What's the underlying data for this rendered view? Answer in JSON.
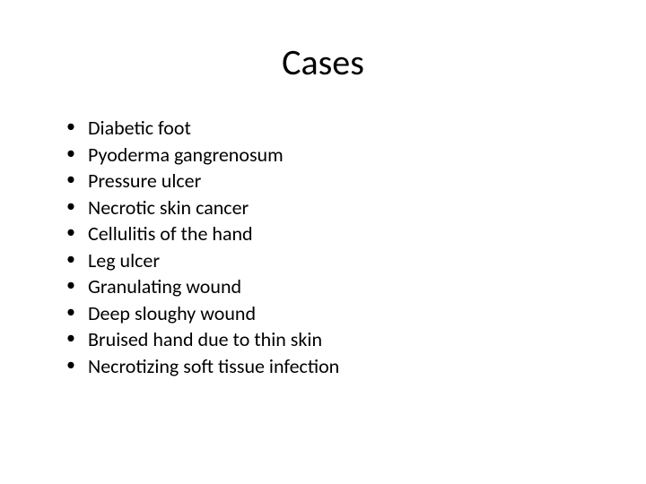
{
  "slide": {
    "title": "Cases",
    "title_fontsize": 40,
    "title_color": "#000000",
    "background_color": "#ffffff",
    "body_fontsize": 22,
    "body_color": "#000000",
    "bullet_char": "•",
    "items": [
      "Diabetic foot",
      "Pyoderma gangrenosum",
      "Pressure ulcer",
      "Necrotic skin cancer",
      "Cellulitis of the hand",
      "Leg ulcer",
      "Granulating wound",
      "Deep sloughy wound",
      "Bruised hand due to thin skin",
      "Necrotizing soft tissue infection"
    ]
  }
}
